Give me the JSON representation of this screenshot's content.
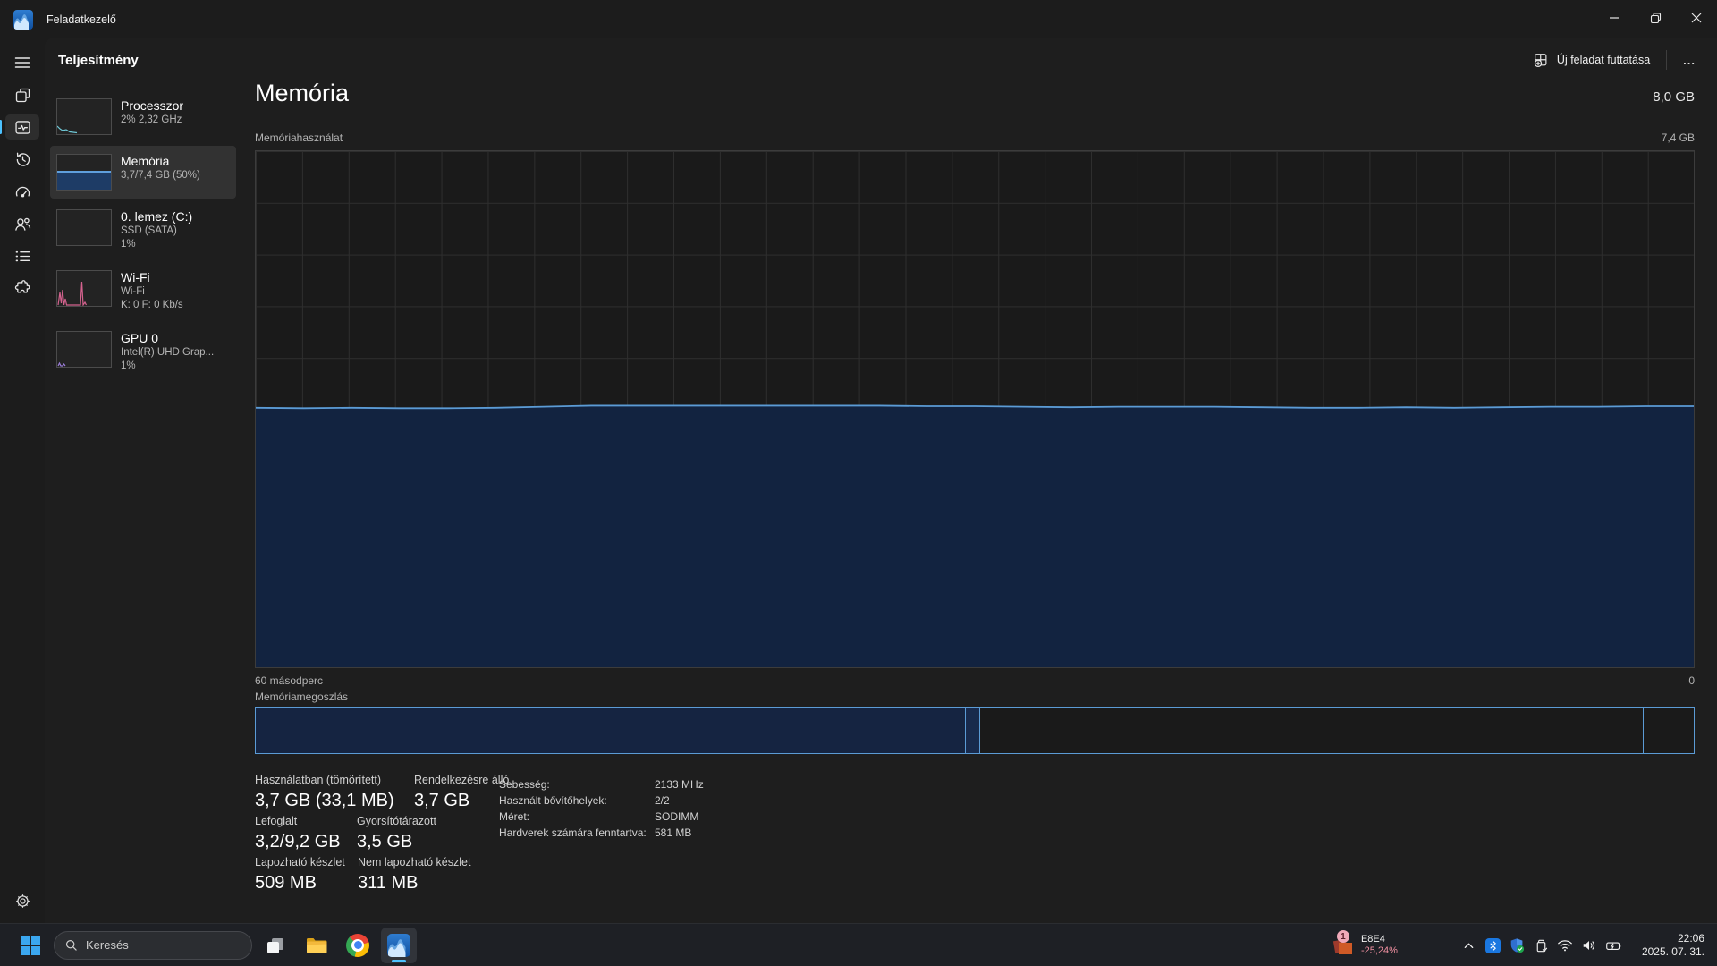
{
  "window": {
    "title": "Feladatkezelő"
  },
  "header": {
    "page_title": "Teljesítmény",
    "run_new_task_label": "Új feladat futtatása",
    "more_label": "..."
  },
  "sidebar": {
    "items": [
      {
        "title": "Processzor",
        "line2": "2% 2,32 GHz",
        "line3": ""
      },
      {
        "title": "Memória",
        "line2": "3,7/7,4 GB (50%)",
        "line3": ""
      },
      {
        "title": "0. lemez (C:)",
        "line2": "SSD (SATA)",
        "line3": "1%"
      },
      {
        "title": "Wi-Fi",
        "line2": "Wi-Fi",
        "line3": "K: 0 F: 0 Kb/s"
      },
      {
        "title": "GPU 0",
        "line2": "Intel(R) UHD Grap...",
        "line3": "1%"
      }
    ]
  },
  "main": {
    "title": "Memória",
    "total_label": "8,0 GB",
    "usage_label": "Memóriahasználat",
    "usage_axis_top": "7,4 GB",
    "time_axis_left": "60 másodperc",
    "time_axis_right": "0",
    "composition_label": "Memóriamegoszlás",
    "stats": [
      {
        "label": "Használatban (tömörített)",
        "value": "3,7 GB (33,1 MB)"
      },
      {
        "label": "Rendelkezésre álló",
        "value": "3,7 GB"
      },
      {
        "label": "Lefoglalt",
        "value": "3,2/9,2 GB"
      },
      {
        "label": "Gyorsítótárazott",
        "value": "3,5 GB"
      },
      {
        "label": "Lapozható készlet",
        "value": "509 MB"
      },
      {
        "label": "Nem lapozható készlet",
        "value": "311 MB"
      }
    ],
    "details": [
      {
        "label": "Sebesség:",
        "value": "2133 MHz"
      },
      {
        "label": "Használt bővítőhelyek:",
        "value": "2/2"
      },
      {
        "label": "Méret:",
        "value": "SODIMM"
      },
      {
        "label": "Hardverek számára fenntartva:",
        "value": "581 MB"
      }
    ]
  },
  "chart_data": {
    "type": "area",
    "title": "Memóriahasználat",
    "xlabel": "60 másodperc",
    "ylabel": "GB",
    "ylim": [
      0,
      7.4
    ],
    "x_range_seconds": [
      60,
      0
    ],
    "total_gb": 8.0,
    "usable_gb": 7.4,
    "used_gb": 3.7,
    "used_pct": 50,
    "grid": true,
    "history_pct": [
      50.3,
      50.2,
      50.3,
      50.2,
      50.2,
      50.3,
      50.5,
      50.7,
      50.7,
      50.7,
      50.7,
      50.7,
      50.7,
      50.7,
      50.6,
      50.6,
      50.5,
      50.4,
      50.5,
      50.5,
      50.5,
      50.4,
      50.3,
      50.3,
      50.4,
      50.3,
      50.4,
      50.5,
      50.5,
      50.6,
      50.6
    ]
  },
  "composition": {
    "segments": [
      {
        "name": "in-use",
        "pct": 49.4
      },
      {
        "name": "modified",
        "pct": 1.0
      },
      {
        "name": "standby",
        "pct": 46.1
      },
      {
        "name": "free",
        "pct": 3.5
      }
    ]
  },
  "colors": {
    "accent": "#4cc2ff",
    "chart_line": "#5b9bd5",
    "chart_fill": "#122340",
    "negative": "#ef8fa0"
  },
  "icons": [
    "task-manager-logo",
    "hamburger-menu",
    "processes",
    "performance",
    "app-history",
    "startup-apps",
    "users",
    "details",
    "services",
    "settings-gear",
    "minimize",
    "restore",
    "close",
    "new-task",
    "more-options",
    "windows-start",
    "search",
    "task-view",
    "file-explorer",
    "chrome",
    "task-manager",
    "chevron-up",
    "bluetooth",
    "security-shield",
    "usb-device",
    "wifi",
    "volume",
    "battery-charging"
  ],
  "taskbar": {
    "search_placeholder": "Keresés",
    "widget": {
      "badge": "1",
      "ticker": "E8E4",
      "change": "-25,24%"
    },
    "clock": {
      "time": "22:06",
      "date": "2025. 07. 31."
    }
  }
}
